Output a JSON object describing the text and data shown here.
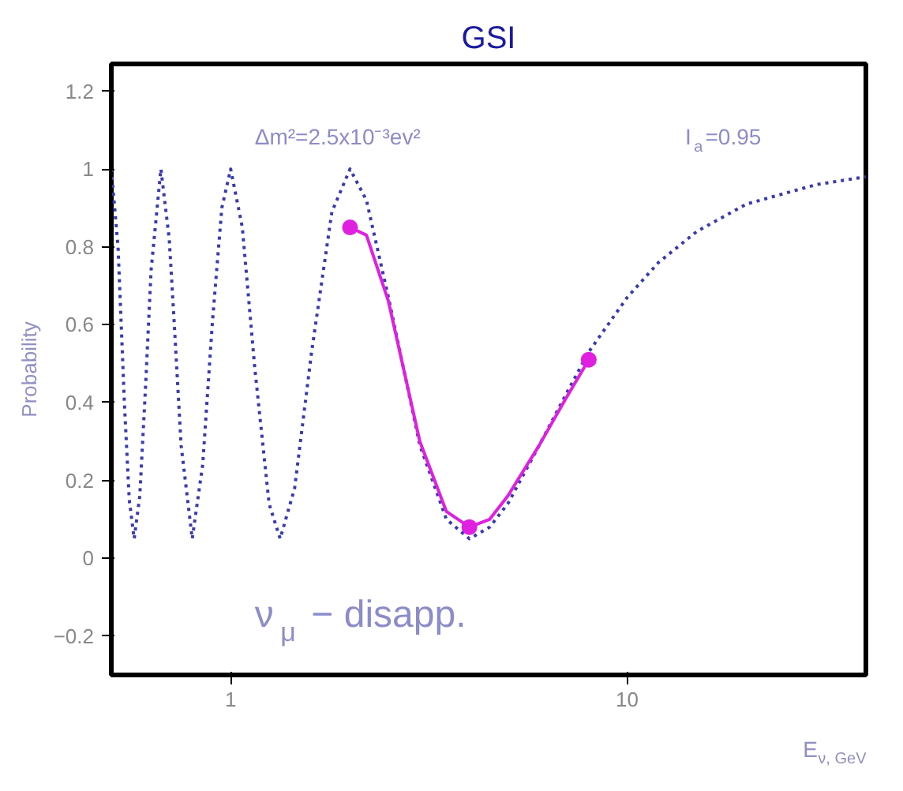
{
  "chart_data": {
    "type": "line",
    "title": "GSI",
    "xlabel": "E$_{ν, GeV}$",
    "ylabel": "Probability",
    "log": "x",
    "xlim": [
      0.5,
      40
    ],
    "ylim": [
      -0.3,
      1.27
    ],
    "xticks": [
      1,
      10
    ],
    "yticks": [
      1.2,
      1,
      0.8,
      0.6,
      0.4,
      0.2,
      0,
      {
        "value": -0.2,
        "label": "−0.2"
      }
    ],
    "grid": false,
    "annotations": [
      "Δm²=2.5x10⁻³ev²",
      "I$_{a}$=0.95",
      "ν$_{μ}$ − disapp."
    ],
    "series": [
      {
        "line_style": "dotted",
        "color": "#3a3ab0",
        "x": [
          0.5,
          0.52,
          0.54,
          0.555,
          0.571,
          0.59,
          0.61,
          0.63,
          0.667,
          0.7,
          0.72,
          0.75,
          0.8,
          0.85,
          0.9,
          0.95,
          1.0,
          1.07,
          1.15,
          1.25,
          1.333,
          1.45,
          1.6,
          1.8,
          2.0,
          2.2,
          2.5,
          3.0,
          3.5,
          4.0,
          4.5,
          5,
          6,
          7,
          8,
          10,
          12,
          15,
          20,
          30,
          40
        ],
        "values": [
          1.0,
          0.8,
          0.39,
          0.15,
          0.05,
          0.16,
          0.44,
          0.74,
          1.0,
          0.82,
          0.61,
          0.29,
          0.05,
          0.24,
          0.61,
          0.9,
          1.0,
          0.85,
          0.49,
          0.14,
          0.05,
          0.18,
          0.53,
          0.89,
          1.0,
          0.92,
          0.67,
          0.29,
          0.1,
          0.05,
          0.08,
          0.14,
          0.29,
          0.42,
          0.53,
          0.67,
          0.76,
          0.84,
          0.91,
          0.96,
          0.98
        ]
      },
      {
        "line_style": "solid",
        "color": "#e020e0",
        "x": [
          2.0,
          2.2,
          2.5,
          3.0,
          3.5,
          4.0,
          4.5,
          5,
          6,
          7,
          8
        ],
        "values": [
          0.85,
          0.83,
          0.66,
          0.3,
          0.12,
          0.08,
          0.1,
          0.16,
          0.29,
          0.41,
          0.51
        ]
      },
      {
        "type": "scatter",
        "marker": "circle",
        "color": "#e020e0",
        "x": [
          2.0,
          4.0,
          8.0
        ],
        "values": [
          0.85,
          0.08,
          0.51
        ]
      }
    ]
  }
}
